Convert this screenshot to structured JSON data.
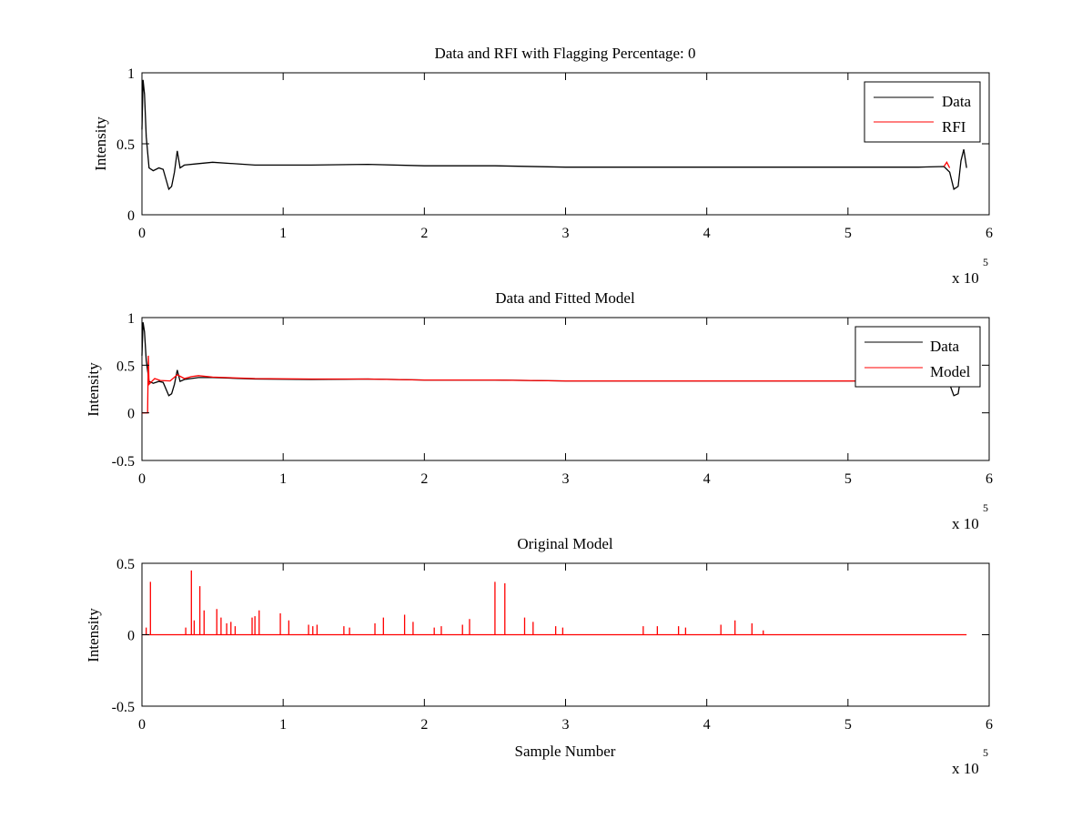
{
  "chart_data": [
    {
      "type": "line",
      "title": "Data and RFI with Flagging Percentage: 0",
      "xlabel": "",
      "ylabel": "Intensity",
      "xlim": [
        0,
        600000
      ],
      "ylim": [
        0,
        1
      ],
      "xticks": [
        "0",
        "1",
        "2",
        "3",
        "4",
        "5",
        "6"
      ],
      "yticks": [
        "0",
        "0.5",
        "1"
      ],
      "x_multiplier": {
        "base": "x 10",
        "exponent": "5"
      },
      "grid": false,
      "legend_position": "top-right",
      "legend": [
        "Data",
        "RFI"
      ],
      "series": [
        {
          "name": "Data",
          "color": "#000000",
          "points": [
            [
              0,
              0.6
            ],
            [
              800,
              0.95
            ],
            [
              1800,
              0.85
            ],
            [
              3000,
              0.55
            ],
            [
              5000,
              0.33
            ],
            [
              8000,
              0.31
            ],
            [
              12000,
              0.33
            ],
            [
              15000,
              0.32
            ],
            [
              17000,
              0.25
            ],
            [
              19000,
              0.18
            ],
            [
              21000,
              0.2
            ],
            [
              23000,
              0.3
            ],
            [
              25000,
              0.45
            ],
            [
              27000,
              0.33
            ],
            [
              30000,
              0.35
            ],
            [
              40000,
              0.36
            ],
            [
              50000,
              0.37
            ],
            [
              80000,
              0.35
            ],
            [
              120000,
              0.35
            ],
            [
              160000,
              0.355
            ],
            [
              200000,
              0.345
            ],
            [
              250000,
              0.345
            ],
            [
              300000,
              0.335
            ],
            [
              350000,
              0.335
            ],
            [
              400000,
              0.335
            ],
            [
              450000,
              0.335
            ],
            [
              500000,
              0.335
            ],
            [
              550000,
              0.335
            ],
            [
              568000,
              0.34
            ],
            [
              572000,
              0.3
            ],
            [
              575000,
              0.18
            ],
            [
              578000,
              0.2
            ],
            [
              580000,
              0.38
            ],
            [
              582000,
              0.46
            ],
            [
              584000,
              0.33
            ]
          ]
        },
        {
          "name": "RFI",
          "color": "#ff0000",
          "points": [
            [
              568000,
              0.34
            ],
            [
              570000,
              0.37
            ],
            [
              572000,
              0.33
            ]
          ]
        }
      ]
    },
    {
      "type": "line",
      "title": "Data and Fitted Model",
      "xlabel": "",
      "ylabel": "Intensity",
      "xlim": [
        0,
        600000
      ],
      "ylim": [
        -0.5,
        1
      ],
      "xticks": [
        "0",
        "1",
        "2",
        "3",
        "4",
        "5",
        "6"
      ],
      "yticks": [
        "-0.5",
        "0",
        "0.5",
        "1"
      ],
      "x_multiplier": {
        "base": "x 10",
        "exponent": "5"
      },
      "grid": false,
      "legend_position": "top-right",
      "legend": [
        "Data",
        "Model"
      ],
      "series": [
        {
          "name": "Data",
          "color": "#000000",
          "points": [
            [
              0,
              0.6
            ],
            [
              800,
              0.95
            ],
            [
              1800,
              0.85
            ],
            [
              3000,
              0.55
            ],
            [
              5000,
              0.33
            ],
            [
              8000,
              0.31
            ],
            [
              12000,
              0.33
            ],
            [
              15000,
              0.32
            ],
            [
              17000,
              0.25
            ],
            [
              19000,
              0.18
            ],
            [
              21000,
              0.2
            ],
            [
              23000,
              0.3
            ],
            [
              25000,
              0.45
            ],
            [
              27000,
              0.33
            ],
            [
              30000,
              0.35
            ],
            [
              40000,
              0.37
            ],
            [
              50000,
              0.37
            ],
            [
              80000,
              0.355
            ],
            [
              120000,
              0.35
            ],
            [
              160000,
              0.355
            ],
            [
              200000,
              0.345
            ],
            [
              250000,
              0.345
            ],
            [
              300000,
              0.335
            ],
            [
              350000,
              0.335
            ],
            [
              400000,
              0.335
            ],
            [
              450000,
              0.335
            ],
            [
              500000,
              0.335
            ],
            [
              550000,
              0.335
            ],
            [
              568000,
              0.34
            ],
            [
              572000,
              0.3
            ],
            [
              575000,
              0.18
            ],
            [
              578000,
              0.2
            ],
            [
              580000,
              0.38
            ],
            [
              582000,
              0.46
            ],
            [
              584000,
              0.33
            ]
          ]
        },
        {
          "name": "Model",
          "color": "#ff0000",
          "points": [
            [
              0,
              0
            ],
            [
              4000,
              0
            ],
            [
              4500,
              0.6
            ],
            [
              5000,
              0.3
            ],
            [
              7000,
              0.33
            ],
            [
              9000,
              0.36
            ],
            [
              13000,
              0.34
            ],
            [
              20000,
              0.335
            ],
            [
              25000,
              0.4
            ],
            [
              30000,
              0.36
            ],
            [
              35000,
              0.38
            ],
            [
              40000,
              0.39
            ],
            [
              50000,
              0.375
            ],
            [
              80000,
              0.36
            ],
            [
              120000,
              0.355
            ],
            [
              160000,
              0.355
            ],
            [
              200000,
              0.345
            ],
            [
              250000,
              0.345
            ],
            [
              300000,
              0.335
            ],
            [
              350000,
              0.335
            ],
            [
              400000,
              0.335
            ],
            [
              450000,
              0.335
            ],
            [
              500000,
              0.335
            ],
            [
              550000,
              0.335
            ],
            [
              584000,
              0.335
            ]
          ]
        }
      ]
    },
    {
      "type": "line",
      "title": "Original Model",
      "xlabel": "Sample Number",
      "ylabel": "Intensity",
      "xlim": [
        0,
        600000
      ],
      "ylim": [
        -0.5,
        0.5
      ],
      "xticks": [
        "0",
        "1",
        "2",
        "3",
        "4",
        "5",
        "6"
      ],
      "yticks": [
        "-0.5",
        "0",
        "0.5"
      ],
      "x_multiplier": {
        "base": "x 10",
        "exponent": "5"
      },
      "grid": false,
      "legend_position": "none",
      "series": [
        {
          "name": "",
          "color": "#ff0000",
          "baseline": 0,
          "x_end": 584000,
          "spikes": [
            [
              3000,
              0.05
            ],
            [
              6000,
              0.37
            ],
            [
              31000,
              0.05
            ],
            [
              35000,
              0.45
            ],
            [
              37000,
              0.1
            ],
            [
              41000,
              0.34
            ],
            [
              44000,
              0.17
            ],
            [
              53000,
              0.18
            ],
            [
              56000,
              0.12
            ],
            [
              60000,
              0.08
            ],
            [
              63000,
              0.09
            ],
            [
              66000,
              0.06
            ],
            [
              78000,
              0.12
            ],
            [
              80000,
              0.13
            ],
            [
              83000,
              0.17
            ],
            [
              98000,
              0.15
            ],
            [
              104000,
              0.1
            ],
            [
              118000,
              0.07
            ],
            [
              121000,
              0.06
            ],
            [
              124000,
              0.07
            ],
            [
              143000,
              0.06
            ],
            [
              147000,
              0.05
            ],
            [
              165000,
              0.08
            ],
            [
              171000,
              0.12
            ],
            [
              186000,
              0.14
            ],
            [
              192000,
              0.09
            ],
            [
              207000,
              0.05
            ],
            [
              212000,
              0.06
            ],
            [
              227000,
              0.07
            ],
            [
              232000,
              0.11
            ],
            [
              250000,
              0.37
            ],
            [
              257000,
              0.36
            ],
            [
              271000,
              0.12
            ],
            [
              277000,
              0.09
            ],
            [
              293000,
              0.06
            ],
            [
              298000,
              0.05
            ],
            [
              355000,
              0.06
            ],
            [
              365000,
              0.06
            ],
            [
              380000,
              0.06
            ],
            [
              385000,
              0.05
            ],
            [
              410000,
              0.07
            ],
            [
              420000,
              0.1
            ],
            [
              432000,
              0.08
            ],
            [
              440000,
              0.03
            ]
          ]
        }
      ]
    }
  ]
}
